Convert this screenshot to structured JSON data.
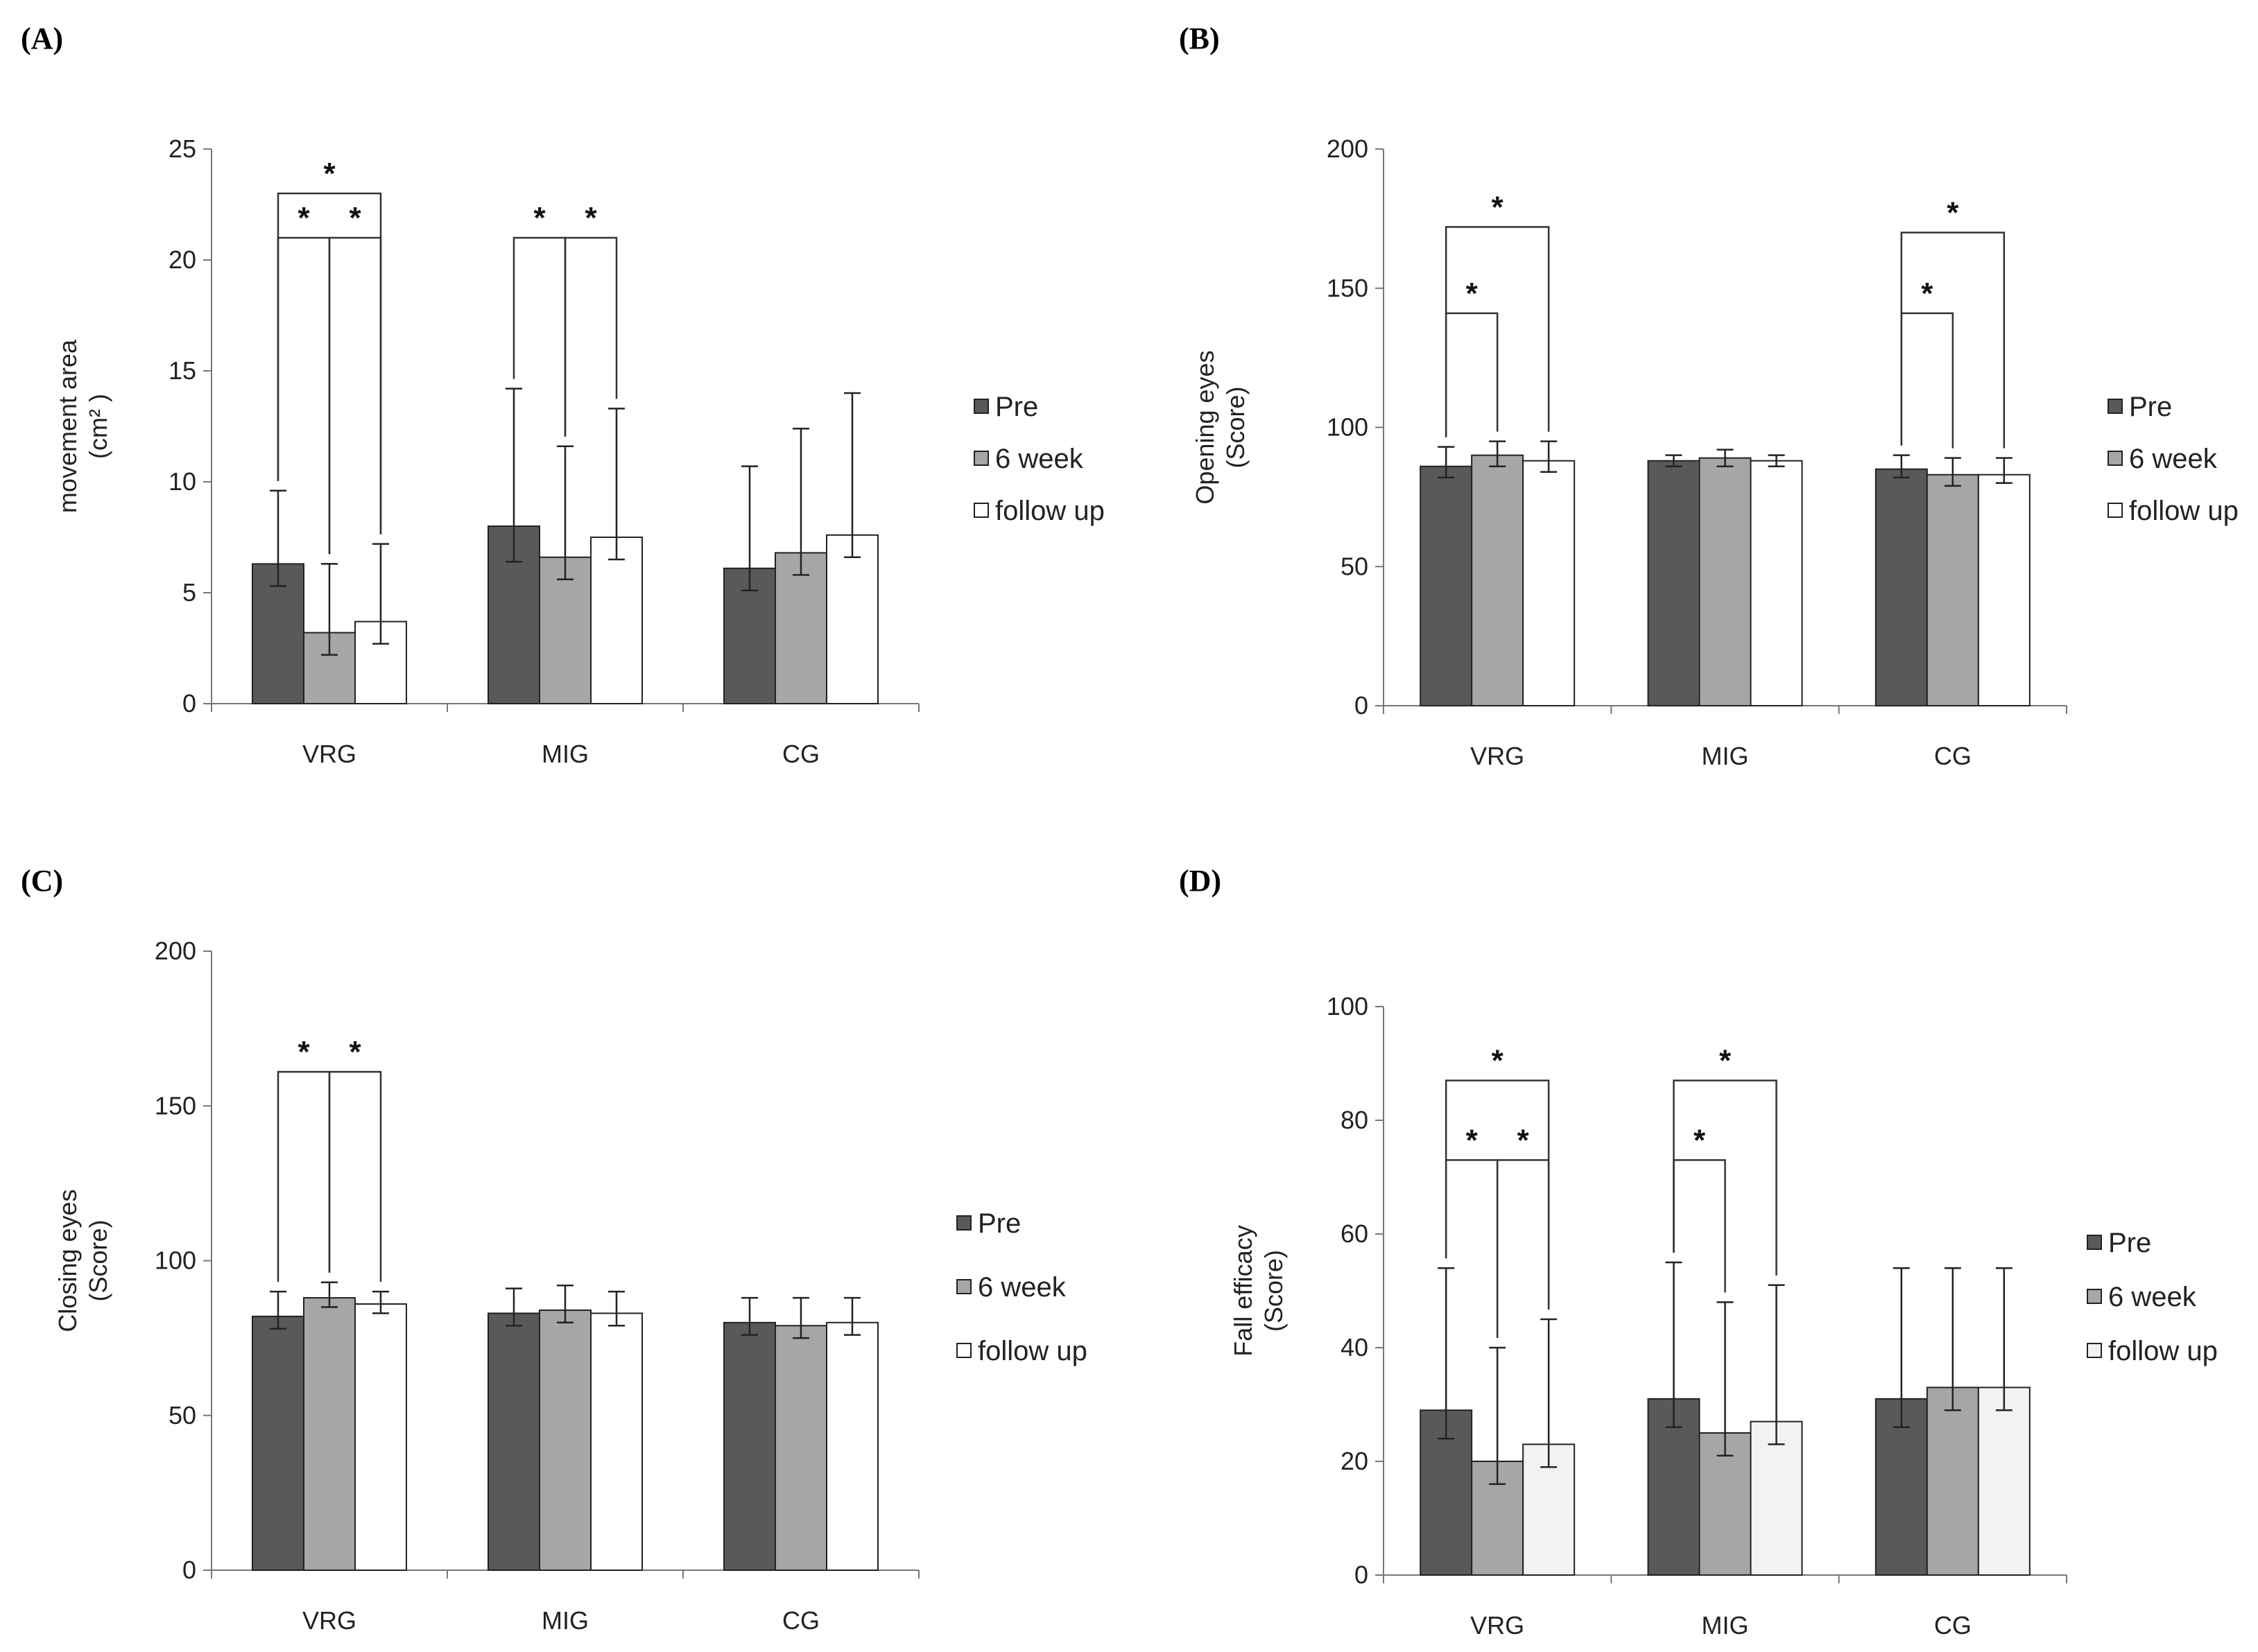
{
  "chart_data": [
    {
      "panel": "(A)",
      "type": "bar",
      "ylabel_lines": [
        "movement area",
        "(cm² )"
      ],
      "ylim": [
        0,
        25
      ],
      "yticks": [
        0,
        5,
        10,
        15,
        20,
        25
      ],
      "categories": [
        "VRG",
        "MIG",
        "CG"
      ],
      "series": [
        {
          "name": "Pre",
          "color": "#595959",
          "values": [
            6.3,
            8.0,
            6.1
          ],
          "err_low": [
            1.0,
            1.6,
            1.0
          ],
          "err_high": [
            3.3,
            6.2,
            4.6
          ]
        },
        {
          "name": "6 week",
          "color": "#a6a6a6",
          "values": [
            3.2,
            6.6,
            6.8
          ],
          "err_low": [
            1.0,
            1.0,
            1.0
          ],
          "err_high": [
            3.1,
            5.0,
            5.6
          ]
        },
        {
          "name": "follow up",
          "color": "#ffffff",
          "values": [
            3.7,
            7.5,
            7.6
          ],
          "err_low": [
            1.0,
            1.0,
            1.0
          ],
          "err_high": [
            3.5,
            5.8,
            6.4
          ]
        }
      ],
      "significance": [
        {
          "category": 0,
          "from": 0,
          "to": 1,
          "y": 21.0,
          "label": "*"
        },
        {
          "category": 0,
          "from": 1,
          "to": 2,
          "y": 21.0,
          "label": "*"
        },
        {
          "category": 0,
          "from": 0,
          "to": 2,
          "y": 23.0,
          "label": "*"
        },
        {
          "category": 1,
          "from": 0,
          "to": 1,
          "y": 21.0,
          "label": "*"
        },
        {
          "category": 1,
          "from": 1,
          "to": 2,
          "y": 21.0,
          "label": "*"
        }
      ],
      "legend": [
        "Pre",
        "6 week",
        "follow up"
      ]
    },
    {
      "panel": "(B)",
      "type": "bar",
      "ylabel_lines": [
        "Opening eyes",
        "(Score)"
      ],
      "ylim": [
        0,
        200
      ],
      "yticks": [
        0,
        50,
        100,
        150,
        200
      ],
      "categories": [
        "VRG",
        "MIG",
        "CG"
      ],
      "series": [
        {
          "name": "Pre",
          "color": "#595959",
          "values": [
            86,
            88,
            85
          ],
          "err_low": [
            4,
            2,
            3
          ],
          "err_high": [
            7,
            2,
            5
          ]
        },
        {
          "name": "6 week",
          "color": "#a6a6a6",
          "values": [
            90,
            89,
            83
          ],
          "err_low": [
            4,
            3,
            4
          ],
          "err_high": [
            5,
            3,
            6
          ]
        },
        {
          "name": "follow up",
          "color": "#ffffff",
          "values": [
            88,
            88,
            83
          ],
          "err_low": [
            4,
            2,
            3
          ],
          "err_high": [
            7,
            2,
            6
          ]
        }
      ],
      "significance": [
        {
          "category": 0,
          "from": 0,
          "to": 1,
          "y": 141,
          "label": "*"
        },
        {
          "category": 0,
          "from": 0,
          "to": 2,
          "y": 172,
          "label": "*"
        },
        {
          "category": 2,
          "from": 0,
          "to": 1,
          "y": 141,
          "label": "*"
        },
        {
          "category": 2,
          "from": 0,
          "to": 2,
          "y": 170,
          "label": "*"
        }
      ],
      "legend": [
        "Pre",
        "6 week",
        "follow up"
      ]
    },
    {
      "panel": "(C)",
      "type": "bar",
      "ylabel_lines": [
        "Closing eyes",
        "(Score)"
      ],
      "ylim": [
        0,
        200
      ],
      "yticks": [
        0,
        50,
        100,
        150,
        200
      ],
      "categories": [
        "VRG",
        "MIG",
        "CG"
      ],
      "series": [
        {
          "name": "Pre",
          "color": "#595959",
          "values": [
            82,
            83,
            80
          ],
          "err_low": [
            4,
            4,
            4
          ],
          "err_high": [
            8,
            8,
            8
          ]
        },
        {
          "name": "6 week",
          "color": "#a6a6a6",
          "values": [
            88,
            84,
            79
          ],
          "err_low": [
            3,
            4,
            4
          ],
          "err_high": [
            5,
            8,
            9
          ]
        },
        {
          "name": "follow up",
          "color": "#ffffff",
          "values": [
            86,
            83,
            80
          ],
          "err_low": [
            3,
            4,
            4
          ],
          "err_high": [
            4,
            7,
            8
          ]
        }
      ],
      "significance": [
        {
          "category": 0,
          "from": 0,
          "to": 1,
          "y": 161,
          "label": "*"
        },
        {
          "category": 0,
          "from": 1,
          "to": 2,
          "y": 161,
          "label": "*"
        }
      ],
      "legend": [
        "Pre",
        "6 week",
        "follow up"
      ]
    },
    {
      "panel": "(D)",
      "type": "bar",
      "ylabel_lines": [
        "Fall efficacy",
        "(Score)"
      ],
      "ylim": [
        0,
        100
      ],
      "yticks": [
        0,
        20,
        40,
        60,
        80,
        100
      ],
      "categories": [
        "VRG",
        "MIG",
        "CG"
      ],
      "series": [
        {
          "name": "Pre",
          "color": "#595959",
          "values": [
            29,
            31,
            31
          ],
          "err_low": [
            5,
            5,
            5
          ],
          "err_high": [
            25,
            24,
            23
          ]
        },
        {
          "name": "6 week",
          "color": "#a6a6a6",
          "values": [
            20,
            25,
            33
          ],
          "err_low": [
            4,
            4,
            4
          ],
          "err_high": [
            20,
            23,
            21
          ]
        },
        {
          "name": "follow up",
          "color": "#f2f2f2",
          "values": [
            23,
            27,
            33
          ],
          "err_low": [
            4,
            4,
            4
          ],
          "err_high": [
            22,
            24,
            21
          ]
        }
      ],
      "significance": [
        {
          "category": 0,
          "from": 0,
          "to": 1,
          "y": 73,
          "label": "*"
        },
        {
          "category": 0,
          "from": 1,
          "to": 2,
          "y": 73,
          "label": "*"
        },
        {
          "category": 0,
          "from": 0,
          "to": 2,
          "y": 87,
          "label": "*"
        },
        {
          "category": 1,
          "from": 0,
          "to": 1,
          "y": 73,
          "label": "*"
        },
        {
          "category": 1,
          "from": 0,
          "to": 2,
          "y": 87,
          "label": "*"
        }
      ],
      "legend": [
        "Pre",
        "6 week",
        "follow up"
      ]
    }
  ]
}
